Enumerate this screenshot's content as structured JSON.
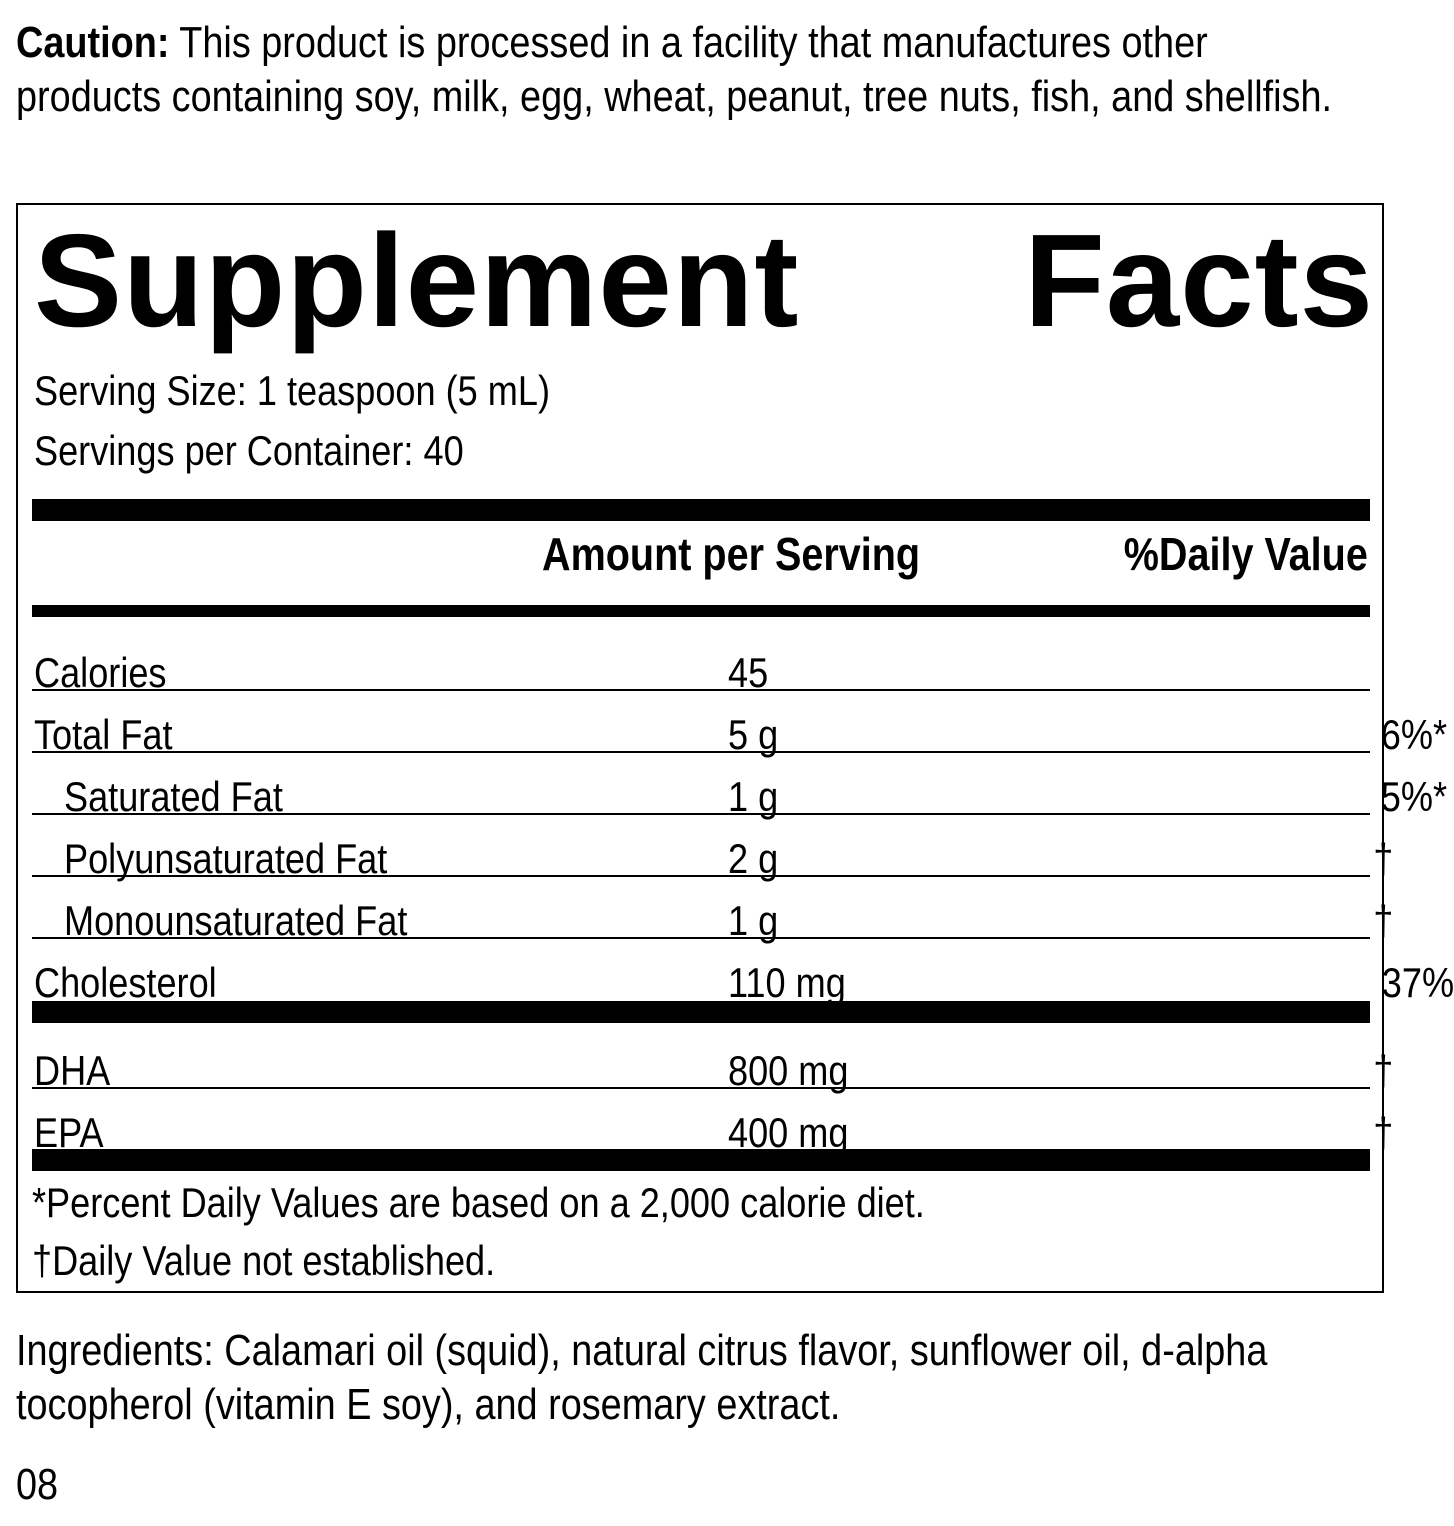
{
  "caution": {
    "label": "Caution:",
    "text": " This product is processed in a facility that manufactures other products containing soy, milk, egg, wheat, peanut, tree nuts, fish, and shellfish."
  },
  "facts": {
    "title_left": "Supplement",
    "title_right": "Facts",
    "serving_size": "Serving Size: 1 teaspoon (5 mL)",
    "servings_per_container": "Servings per Container: 40",
    "header_amount": "Amount per Serving",
    "header_dv": "%Daily Value",
    "rows": [
      {
        "name": "Calories",
        "amount": "45",
        "dv": ""
      },
      {
        "name": "Total Fat",
        "amount": "5 g",
        "dv": "6%*"
      },
      {
        "name": "Saturated Fat",
        "amount": "1 g",
        "dv": "5%*"
      },
      {
        "name": "Polyunsaturated Fat",
        "amount": "2 g",
        "dv": "†"
      },
      {
        "name": "Monounsaturated Fat",
        "amount": "1 g",
        "dv": "†"
      },
      {
        "name": "Cholesterol",
        "amount": "110 mg",
        "dv": "37%"
      },
      {
        "name": "DHA",
        "amount": "800 mg",
        "dv": "†"
      },
      {
        "name": "EPA",
        "amount": "400 mg",
        "dv": "†"
      }
    ],
    "footnote1": "*Percent Daily Values are based on a 2,000 calorie diet.",
    "footnote2": "†Daily Value not established."
  },
  "ingredients": "Ingredients: Calamari oil (squid), natural citrus flavor, sunflower oil, d-alpha tocopherol (vitamin E soy), and rosemary extract.",
  "code": "08"
}
